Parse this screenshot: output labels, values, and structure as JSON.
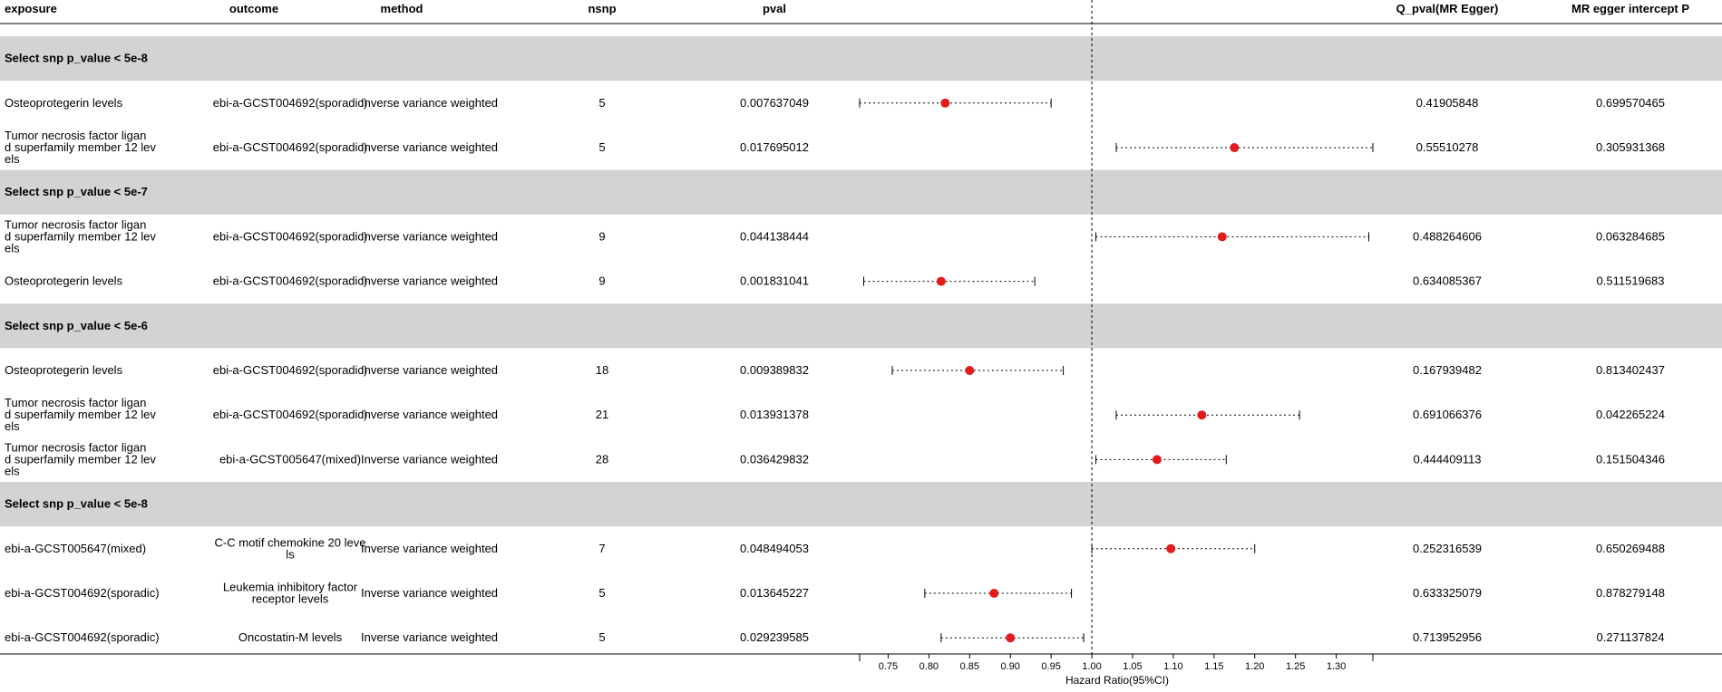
{
  "columns": {
    "exposure": "exposure",
    "outcome": "outcome",
    "method": "method",
    "nsnp": "nsnp",
    "pval": "pval",
    "q_pval": "Q_pval(MR Egger)",
    "intercept": "MR egger intercept P"
  },
  "rows": [
    {
      "type": "section",
      "label": "Select snp p_value < 5e-8"
    },
    {
      "type": "data",
      "exposure": [
        "Osteoprotegerin levels"
      ],
      "outcome": [
        "ebi-a-GCST004692(sporadic)"
      ],
      "method": "Inverse variance weighted",
      "nsnp": "5",
      "pval": "0.007637049",
      "q_pval": "0.41905848",
      "intercept": "0.699570465",
      "hr": 0.82,
      "lo": 0.715,
      "hi": 0.95
    },
    {
      "type": "data",
      "exposure": [
        "Tumor necrosis factor ligan",
        "d superfamily member 12 lev",
        "els"
      ],
      "outcome": [
        "ebi-a-GCST004692(sporadic)"
      ],
      "method": "Inverse variance weighted",
      "nsnp": "5",
      "pval": "0.017695012",
      "q_pval": "0.55510278",
      "intercept": "0.305931368",
      "hr": 1.175,
      "lo": 1.03,
      "hi": 1.345
    },
    {
      "type": "section",
      "label": "Select snp p_value < 5e-7"
    },
    {
      "type": "data",
      "exposure": [
        "Tumor necrosis factor ligan",
        "d superfamily member 12 lev",
        "els"
      ],
      "outcome": [
        "ebi-a-GCST004692(sporadic)"
      ],
      "method": "Inverse variance weighted",
      "nsnp": "9",
      "pval": "0.044138444",
      "q_pval": "0.488264606",
      "intercept": "0.063284685",
      "hr": 1.16,
      "lo": 1.005,
      "hi": 1.34
    },
    {
      "type": "data",
      "exposure": [
        "Osteoprotegerin levels"
      ],
      "outcome": [
        "ebi-a-GCST004692(sporadic)"
      ],
      "method": "Inverse variance weighted",
      "nsnp": "9",
      "pval": "0.001831041",
      "q_pval": "0.634085367",
      "intercept": "0.511519683",
      "hr": 0.815,
      "lo": 0.72,
      "hi": 0.93
    },
    {
      "type": "section",
      "label": "Select snp p_value < 5e-6"
    },
    {
      "type": "data",
      "exposure": [
        "Osteoprotegerin levels"
      ],
      "outcome": [
        "ebi-a-GCST004692(sporadic)"
      ],
      "method": "Inverse variance weighted",
      "nsnp": "18",
      "pval": "0.009389832",
      "q_pval": "0.167939482",
      "intercept": "0.813402437",
      "hr": 0.85,
      "lo": 0.755,
      "hi": 0.965
    },
    {
      "type": "data",
      "exposure": [
        "Tumor necrosis factor ligan",
        "d superfamily member 12 lev",
        "els"
      ],
      "outcome": [
        "ebi-a-GCST004692(sporadic)"
      ],
      "method": "Inverse variance weighted",
      "nsnp": "21",
      "pval": "0.013931378",
      "q_pval": "0.691066376",
      "intercept": "0.042265224",
      "hr": 1.135,
      "lo": 1.03,
      "hi": 1.255
    },
    {
      "type": "data",
      "exposure": [
        "Tumor necrosis factor ligan",
        "d superfamily member 12 lev",
        "els"
      ],
      "outcome": [
        "ebi-a-GCST005647(mixed)"
      ],
      "method": "Inverse variance weighted",
      "nsnp": "28",
      "pval": "0.036429832",
      "q_pval": "0.444409113",
      "intercept": "0.151504346",
      "hr": 1.08,
      "lo": 1.005,
      "hi": 1.165
    },
    {
      "type": "section",
      "label": "Select snp p_value < 5e-8"
    },
    {
      "type": "data",
      "exposure": [
        "ebi-a-GCST005647(mixed)"
      ],
      "outcome": [
        "C-C motif chemokine 20 leve",
        "ls"
      ],
      "method": "Inverse variance weighted",
      "nsnp": "7",
      "pval": "0.048494053",
      "q_pval": "0.252316539",
      "intercept": "0.650269488",
      "hr": 1.097,
      "lo": 1.0,
      "hi": 1.2
    },
    {
      "type": "data",
      "exposure": [
        "ebi-a-GCST004692(sporadic)"
      ],
      "outcome": [
        "Leukemia inhibitory factor",
        "receptor levels"
      ],
      "method": "Inverse variance weighted",
      "nsnp": "5",
      "pval": "0.013645227",
      "q_pval": "0.633325079",
      "intercept": "0.878279148",
      "hr": 0.88,
      "lo": 0.795,
      "hi": 0.975
    },
    {
      "type": "data",
      "exposure": [
        "ebi-a-GCST004692(sporadic)"
      ],
      "outcome": [
        "Oncostatin-M levels"
      ],
      "method": "Inverse variance weighted",
      "nsnp": "5",
      "pval": "0.029239585",
      "q_pval": "0.713952956",
      "intercept": "0.271137824",
      "hr": 0.9,
      "lo": 0.815,
      "hi": 0.99
    }
  ],
  "chart_data": {
    "type": "forest",
    "xlabel": "Hazard Ratio(95%CI)",
    "ticks": [
      0.75,
      0.8,
      0.85,
      0.9,
      0.95,
      1.0,
      1.05,
      1.1,
      1.15,
      1.2,
      1.25,
      1.3
    ],
    "tick_labels": [
      "0.75",
      "0.80",
      "0.85",
      "0.90",
      "0.95",
      "1.00",
      "1.05",
      "1.10",
      "1.15",
      "1.20",
      "1.25",
      "1.30"
    ],
    "xlim": [
      0.715,
      1.345
    ],
    "reference_line": 1.0,
    "point_color": "#e41a1c",
    "section_color": "#d3d3d3"
  }
}
